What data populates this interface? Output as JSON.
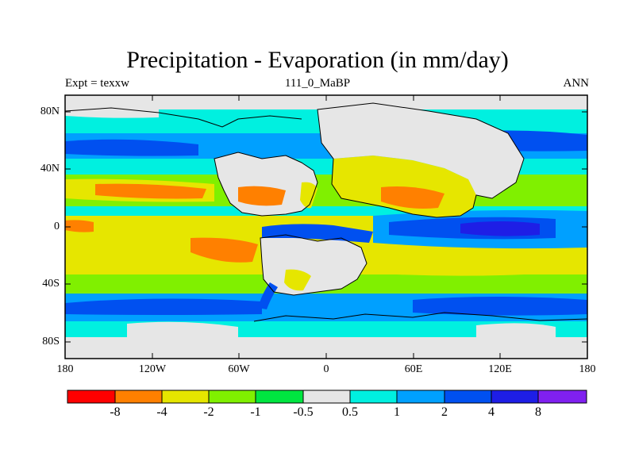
{
  "title": "Precipitation - Evaporation (in mm/day)",
  "left_subtitle": "Expt = texxw",
  "center_subtitle": "111_0_MaBP",
  "right_subtitle": "ANN",
  "lat_ticks": [
    "80N",
    "40N",
    "0",
    "40S",
    "80S"
  ],
  "lon_ticks": [
    "180",
    "120W",
    "60W",
    "0",
    "60E",
    "120E",
    "180"
  ],
  "colorbar": {
    "labels": [
      "-8",
      "-4",
      "-2",
      "-1",
      "-0.5",
      "0.5",
      "1",
      "2",
      "4",
      "8"
    ],
    "colors": [
      "#ff0000",
      "#ff8000",
      "#e6e600",
      "#80f000",
      "#00e640",
      "#e6e6e6",
      "#00f0e0",
      "#00a0ff",
      "#0050f0",
      "#1e1ee6",
      "#8020f0"
    ]
  },
  "palette": {
    "dry_strong": "#ff8000",
    "dry": "#e6e600",
    "dry_weak": "#80f000",
    "neutral": "#e6e6e6",
    "wet_weak": "#00f0e0",
    "wet": "#00a0ff",
    "wet_strong": "#0050f0",
    "wet_very_strong": "#1e1ee6"
  }
}
